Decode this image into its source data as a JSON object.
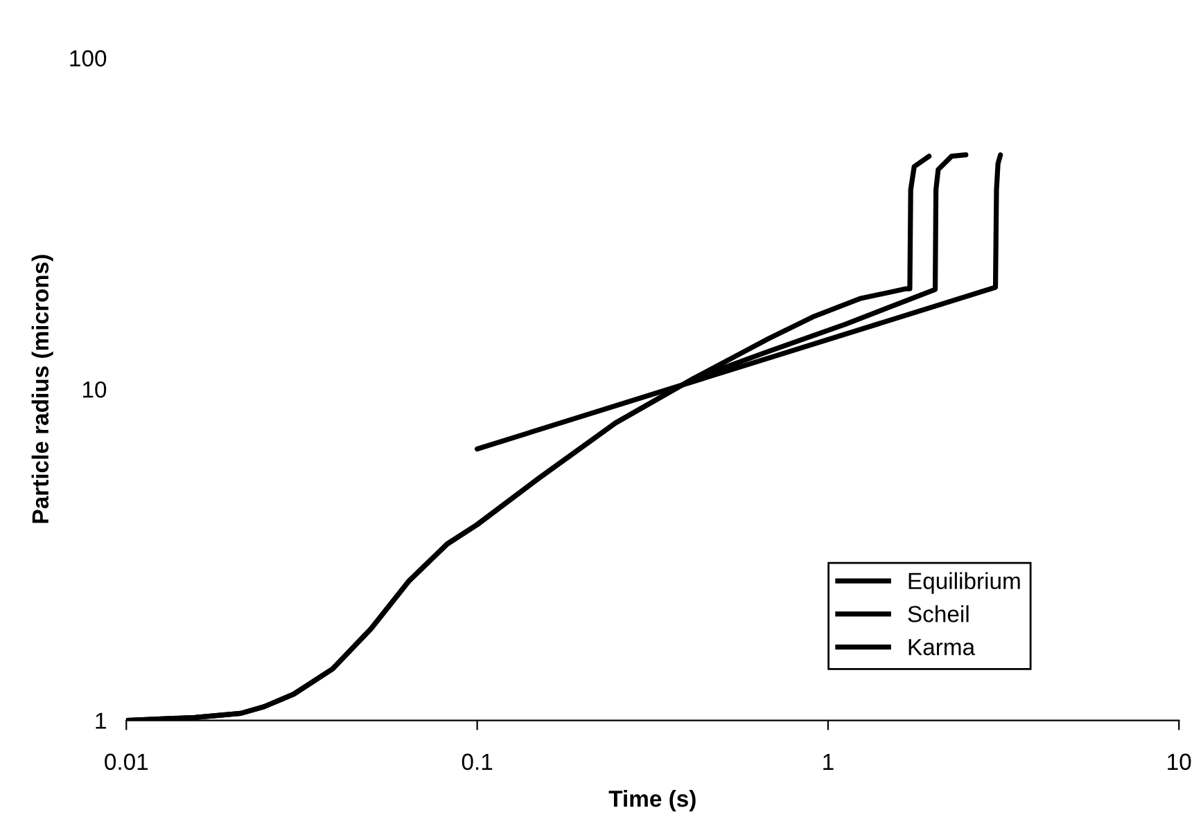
{
  "chart_data": {
    "type": "line",
    "xlabel": "Time (s)",
    "ylabel": "Particle radius (microns)",
    "log": "xy",
    "xlim": [
      0.01,
      10
    ],
    "ylim": [
      1,
      100
    ],
    "xticks": [
      0.01,
      0.1,
      1,
      10
    ],
    "yticks": [
      1,
      10,
      100
    ],
    "grid": false,
    "legend": "bottom right",
    "marker": "none",
    "line_style": "solid",
    "series": [
      {
        "name": "Equilibrium",
        "color": "#000000",
        "x": [
          0.01,
          0.0157,
          0.0212,
          0.0247,
          0.03,
          0.0387,
          0.0498,
          0.064,
          0.0822,
          0.1,
          0.15,
          0.248,
          0.409,
          0.676,
          0.914,
          1.24,
          1.67,
          1.71,
          1.72,
          1.76,
          1.94
        ],
        "values": [
          1,
          1.02,
          1.05,
          1.1,
          1.2,
          1.43,
          1.89,
          2.64,
          3.41,
          3.9,
          5.39,
          7.91,
          10.7,
          14.2,
          16.6,
          18.8,
          20.1,
          20.1,
          40,
          47,
          50.5
        ]
      },
      {
        "name": "Scheil",
        "color": "#000000",
        "x": [
          0.01,
          0.0157,
          0.0212,
          0.0247,
          0.03,
          0.0387,
          0.0498,
          0.064,
          0.0822,
          0.1,
          0.15,
          0.248,
          0.409,
          0.676,
          1.12,
          2.02,
          2.03,
          2.06,
          2.25,
          2.47
        ],
        "values": [
          1,
          1.02,
          1.05,
          1.1,
          1.2,
          1.43,
          1.89,
          2.64,
          3.41,
          3.9,
          5.39,
          7.91,
          10.7,
          13.0,
          15.7,
          20,
          40,
          46,
          50.5,
          51
        ]
      },
      {
        "name": "Karma",
        "color": "#000000",
        "x": [
          0.1,
          3.0,
          3.02,
          3.05,
          3.1
        ],
        "values": [
          6.6,
          20.3,
          40,
          48,
          51
        ]
      }
    ]
  }
}
